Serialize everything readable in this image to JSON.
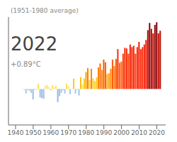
{
  "chart_data": {
    "type": "bar",
    "title": "(1951-1980 average)",
    "annotations": [
      "2022",
      "+0.89°C"
    ],
    "x": [
      1945,
      1946,
      1947,
      1948,
      1949,
      1950,
      1951,
      1952,
      1953,
      1954,
      1955,
      1956,
      1957,
      1958,
      1959,
      1960,
      1961,
      1962,
      1963,
      1964,
      1965,
      1966,
      1967,
      1968,
      1969,
      1970,
      1971,
      1972,
      1973,
      1974,
      1975,
      1976,
      1977,
      1978,
      1979,
      1980,
      1981,
      1982,
      1983,
      1984,
      1985,
      1986,
      1987,
      1988,
      1989,
      1990,
      1991,
      1992,
      1993,
      1994,
      1995,
      1996,
      1997,
      1998,
      1999,
      2000,
      2001,
      2002,
      2003,
      2004,
      2005,
      2006,
      2007,
      2008,
      2009,
      2010,
      2011,
      2012,
      2013,
      2014,
      2015,
      2016,
      2017,
      2018,
      2019,
      2020,
      2021,
      2022
    ],
    "values": [
      -0.01,
      -0.07,
      -0.02,
      -0.03,
      -0.06,
      -0.16,
      -0.01,
      -0.01,
      0.08,
      -0.13,
      -0.14,
      -0.15,
      0.05,
      0.06,
      0.03,
      -0.02,
      0.06,
      0.03,
      0.05,
      -0.2,
      -0.11,
      -0.06,
      -0.02,
      -0.07,
      0.08,
      0.04,
      -0.08,
      0.01,
      0.16,
      -0.07,
      -0.01,
      -0.1,
      0.18,
      0.07,
      0.16,
      0.26,
      0.32,
      0.14,
      0.31,
      0.16,
      0.12,
      0.18,
      0.33,
      0.39,
      0.29,
      0.45,
      0.41,
      0.23,
      0.24,
      0.31,
      0.45,
      0.35,
      0.46,
      0.61,
      0.4,
      0.42,
      0.54,
      0.63,
      0.62,
      0.54,
      0.68,
      0.64,
      0.66,
      0.54,
      0.64,
      0.72,
      0.61,
      0.64,
      0.68,
      0.75,
      0.9,
      1.01,
      0.92,
      0.85,
      0.98,
      1.02,
      0.85,
      0.89
    ],
    "colors": [
      "#acd1e6",
      "#a5c8e6",
      "#abcfe6",
      "#aacee6",
      "#a6c9e6",
      "#9cbbe6",
      "#acd1e6",
      "#acd1e6",
      "#ffde4a",
      "#9fbfe6",
      "#9ebee6",
      "#9dbce6",
      "#ffe65e",
      "#ffe358",
      "#ffeb6c",
      "#abcfe6",
      "#ffe358",
      "#ffeb6c",
      "#ffe65e",
      "#97b5e6",
      "#a1c2e6",
      "#a6c9e6",
      "#abcfe6",
      "#a5c8e6",
      "#ffde4a",
      "#ffe865",
      "#a4c6e6",
      "#fff079",
      "#ffc919",
      "#a5c8e6",
      "#acd1e6",
      "#a2c3e6",
      "#ffc016",
      "#ffe151",
      "#ffc919",
      "#ff9d0c",
      "#ff8305",
      "#ffcf22",
      "#ff8706",
      "#ffc919",
      "#ffd430",
      "#ffc016",
      "#ff7f03",
      "#ff6800",
      "#ff9008",
      "#ff5600",
      "#ff6200",
      "#ffaa10",
      "#ffa60f",
      "#ff8706",
      "#ff5600",
      "#ff7601",
      "#ff5300",
      "#fc2a00",
      "#ff6500",
      "#ff5f00",
      "#ff3a00",
      "#fb2600",
      "#fb2800",
      "#ff3a00",
      "#f81d00",
      "#fa2400",
      "#f92000",
      "#ff3a00",
      "#fa2400",
      "#f51500",
      "#fc2a00",
      "#fa2400",
      "#f81d00",
      "#f31000",
      "#b60600",
      "#840000",
      "#ac0500",
      "#cc0800",
      "#920200",
      "#800000",
      "#cc0800",
      "#ba0600"
    ],
    "xlim": [
      1936,
      2025
    ],
    "xticks": [
      1940,
      1950,
      1960,
      1970,
      1980,
      1990,
      2000,
      2010,
      2020
    ],
    "ylim": [
      -0.55,
      1.1
    ],
    "tick_labels": "x",
    "grid": false
  }
}
